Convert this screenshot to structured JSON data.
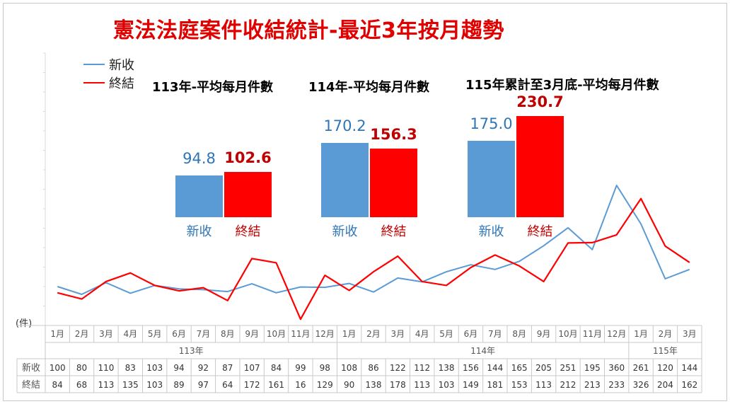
{
  "title": "憲法法庭案件收結統計-最近3年按月趨勢",
  "legend": {
    "new": "新收",
    "closed": "終結"
  },
  "colors": {
    "new": "#5b9bd5",
    "closed": "#ff0000",
    "new_text": "#2e75b6",
    "closed_text": "#c00000",
    "title": "#e00000"
  },
  "unit_label": "(件)",
  "averages": [
    {
      "title": "113年-平均每月件數",
      "new": "94.8",
      "closed": "102.6",
      "new_value": 94.8,
      "closed_value": 102.6,
      "new_label": "新收",
      "closed_label": "終結"
    },
    {
      "title": "114年-平均每月件數",
      "new": "170.2",
      "closed": "156.3",
      "new_value": 170.2,
      "closed_value": 156.3,
      "new_label": "新收",
      "closed_label": "終結"
    },
    {
      "title": "115年累計至3月底-平均每月件數",
      "new": "175.0",
      "closed": "230.7",
      "new_value": 175.0,
      "closed_value": 230.7,
      "new_label": "新收",
      "closed_label": "終結"
    }
  ],
  "chart_data": {
    "type": "line",
    "categories": [
      "1月",
      "2月",
      "3月",
      "4月",
      "5月",
      "6月",
      "7月",
      "8月",
      "9月",
      "10月",
      "11月",
      "12月",
      "1月",
      "2月",
      "3月",
      "4月",
      "5月",
      "6月",
      "7月",
      "8月",
      "9月",
      "10月",
      "11月",
      "12月",
      "1月",
      "2月",
      "3月"
    ],
    "year_groups": [
      {
        "label": "113年",
        "count": 12
      },
      {
        "label": "114年",
        "count": 12
      },
      {
        "label": "115年",
        "count": 3
      }
    ],
    "series": [
      {
        "name": "新收",
        "values": [
          100,
          80,
          110,
          83,
          103,
          94,
          92,
          87,
          107,
          84,
          99,
          98,
          108,
          86,
          122,
          112,
          138,
          156,
          144,
          165,
          205,
          251,
          195,
          360,
          261,
          120,
          144
        ]
      },
      {
        "name": "終結",
        "values": [
          84,
          68,
          113,
          135,
          103,
          89,
          97,
          64,
          172,
          161,
          16,
          129,
          90,
          138,
          178,
          113,
          103,
          149,
          181,
          153,
          113,
          212,
          213,
          233,
          326,
          204,
          162
        ]
      }
    ],
    "ylim": [
      0,
      700
    ],
    "table_row_labels": [
      "新收",
      "終結"
    ]
  }
}
